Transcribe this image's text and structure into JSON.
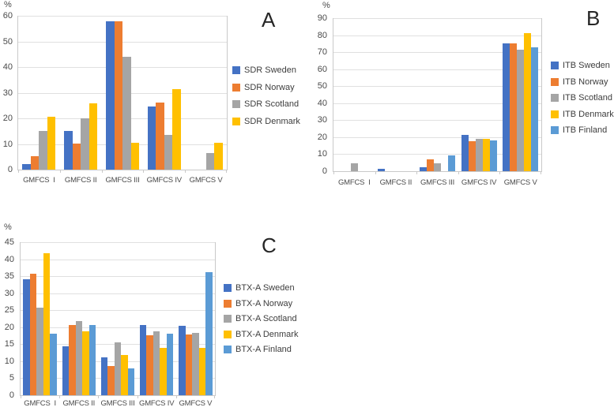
{
  "colors": {
    "blue": "#4472C4",
    "orange": "#ED7D31",
    "gray": "#A5A5A5",
    "yellow": "#FFC000",
    "light_blue": "#5B9BD5"
  },
  "chart_data": [
    {
      "type": "bar",
      "panel_label": "A",
      "unit_label": "%",
      "xlabel": "",
      "ylabel": "%",
      "grid": true,
      "legend_position": "right",
      "ylim": [
        0,
        60
      ],
      "ytick_step": 10,
      "categories": [
        "GMFCS  I",
        "GMFCS II",
        "GMFCS III",
        "GMFCS IV",
        "GMFCS V"
      ],
      "series": [
        {
          "name": "SDR Sweden",
          "color": "blue",
          "values": [
            2.1,
            15.2,
            57.9,
            24.5,
            0
          ]
        },
        {
          "name": "SDR Norway",
          "color": "orange",
          "values": [
            5.1,
            10.3,
            57.9,
            26.3,
            0
          ]
        },
        {
          "name": "SDR Scotland",
          "color": "gray",
          "values": [
            15.0,
            19.9,
            44.0,
            13.4,
            6.6
          ]
        },
        {
          "name": "SDR Denmark",
          "color": "yellow",
          "values": [
            20.7,
            26.0,
            10.4,
            31.5,
            10.4
          ]
        }
      ]
    },
    {
      "type": "bar",
      "panel_label": "B",
      "unit_label": "%",
      "xlabel": "",
      "ylabel": "%",
      "grid": true,
      "legend_position": "right",
      "ylim": [
        0,
        90
      ],
      "ytick_step": 10,
      "categories": [
        "GMFCS  I",
        "GMFCS II",
        "GMFCS III",
        "GMFCS IV",
        "GMFCS V"
      ],
      "series": [
        {
          "name": "ITB Sweden",
          "color": "blue",
          "values": [
            0,
            1.4,
            2.4,
            21.2,
            75.3
          ]
        },
        {
          "name": "ITB Norway",
          "color": "orange",
          "values": [
            0,
            0,
            6.9,
            17.6,
            75.3
          ]
        },
        {
          "name": "ITB Scotland",
          "color": "gray",
          "values": [
            4.7,
            0,
            4.7,
            19.2,
            71.4
          ]
        },
        {
          "name": "ITB Denmark",
          "color": "yellow",
          "values": [
            0,
            0,
            0,
            18.8,
            81.3
          ]
        },
        {
          "name": "ITB Finland",
          "color": "light_blue",
          "values": [
            0,
            0,
            9.2,
            17.9,
            73.0
          ]
        }
      ]
    },
    {
      "type": "bar",
      "panel_label": "C",
      "unit_label": "%",
      "xlabel": "",
      "ylabel": "%",
      "grid": true,
      "legend_position": "right",
      "ylim": [
        0,
        45
      ],
      "ytick_step": 5,
      "categories": [
        "GMFCS  I",
        "GMFCS II",
        "GMFCS III",
        "GMFCS IV",
        "GMFCS V"
      ],
      "series": [
        {
          "name": "BTX-A Sweden",
          "color": "blue",
          "values": [
            34.0,
            14.3,
            11.2,
            20.7,
            20.5
          ]
        },
        {
          "name": "BTX-A Norway",
          "color": "orange",
          "values": [
            35.8,
            20.6,
            8.6,
            17.6,
            17.9
          ]
        },
        {
          "name": "BTX-A Scotland",
          "color": "gray",
          "values": [
            25.7,
            21.8,
            15.6,
            18.9,
            18.4
          ]
        },
        {
          "name": "BTX-A Denmark",
          "color": "yellow",
          "values": [
            41.8,
            18.9,
            11.9,
            13.9,
            13.9
          ]
        },
        {
          "name": "BTX-A Finland",
          "color": "light_blue",
          "values": [
            18.0,
            20.7,
            7.8,
            18.2,
            36.2
          ]
        }
      ]
    }
  ]
}
